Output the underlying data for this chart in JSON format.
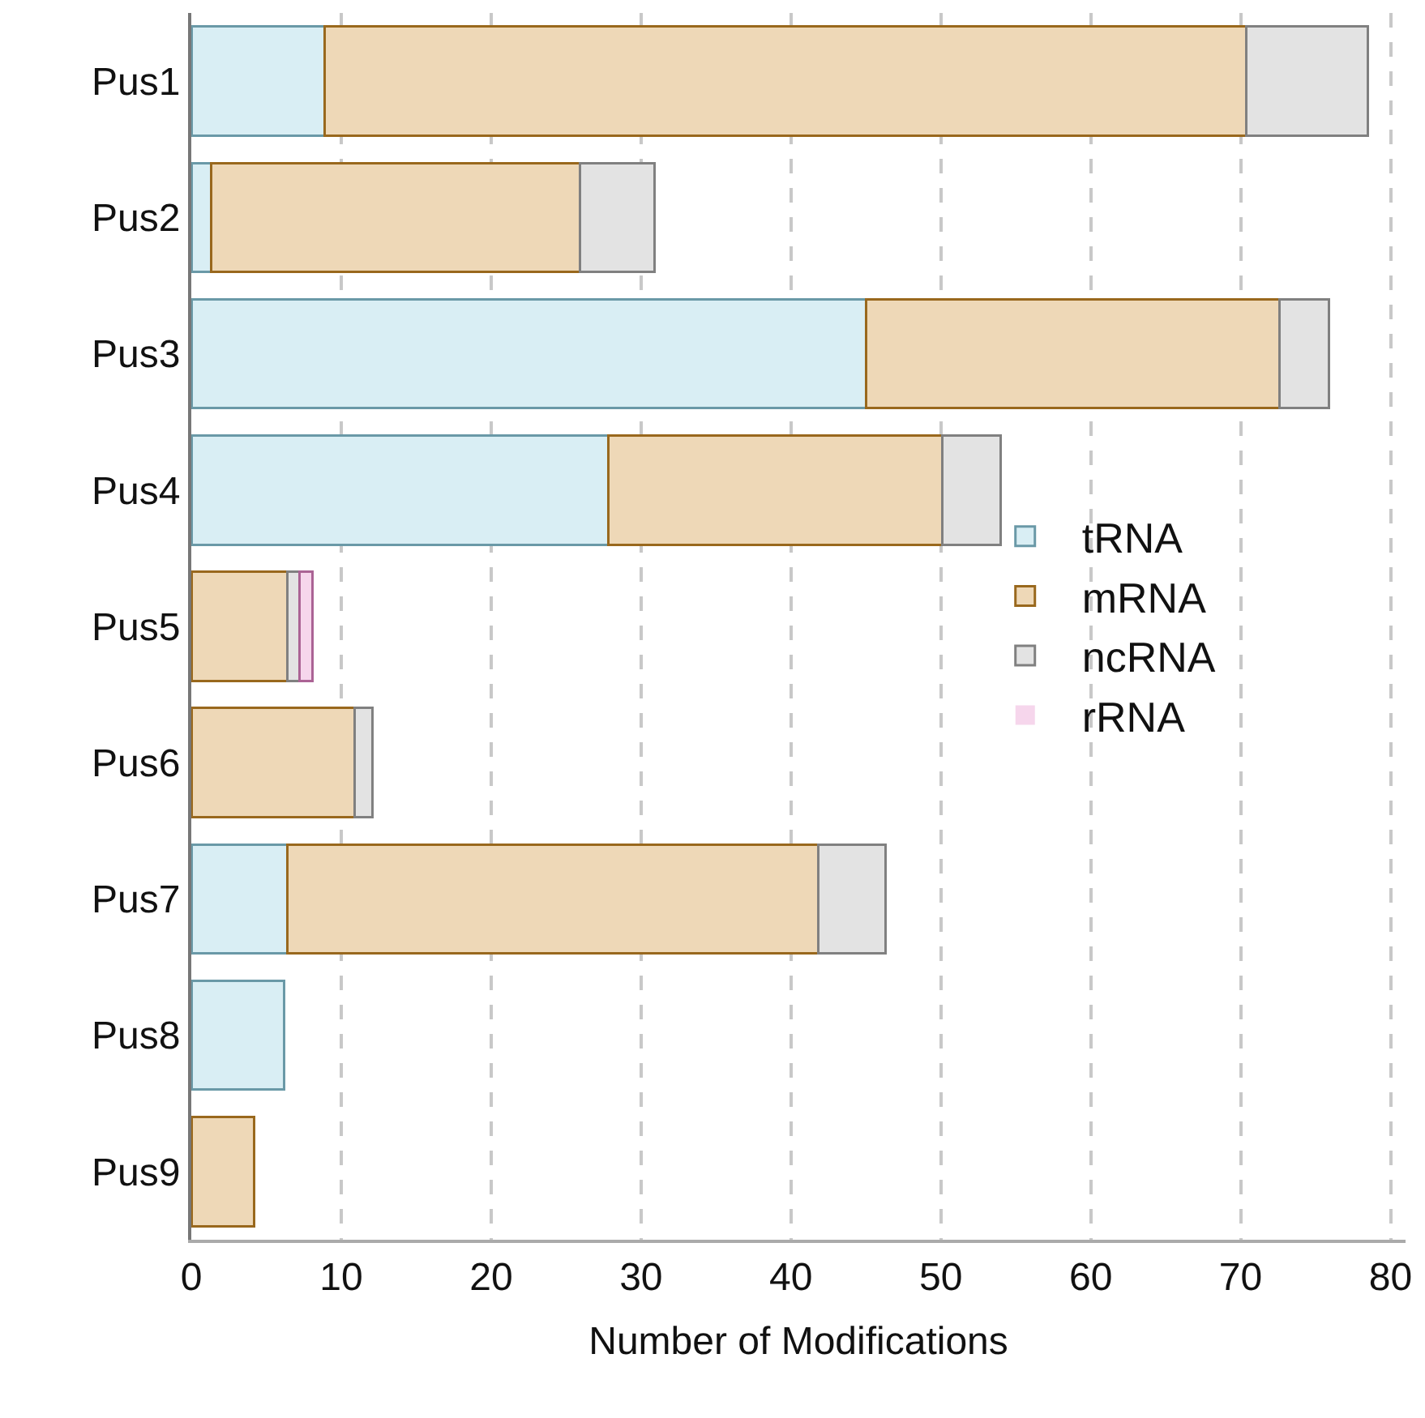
{
  "chart_data": {
    "type": "bar",
    "orientation": "horizontal",
    "stacked": true,
    "xlabel": "Number of Modifications",
    "categories": [
      "Pus1",
      "Pus2",
      "Pus3",
      "Pus4",
      "Pus5",
      "Pus6",
      "Pus7",
      "Pus8",
      "Pus9"
    ],
    "series": [
      {
        "name": "tRNA",
        "color": "#d9eef4",
        "values": [
          8.9,
          1.3,
          45,
          27.8,
          0,
          0,
          6.4,
          6.2,
          0
        ]
      },
      {
        "name": "mRNA",
        "color": "#eed8b7",
        "values": [
          61.5,
          24.6,
          27.6,
          22.3,
          6.4,
          10.9,
          35.4,
          0,
          4.2
        ]
      },
      {
        "name": "ncRNA",
        "color": "#e3e3e3",
        "values": [
          8.1,
          5,
          3.3,
          3.9,
          0.8,
          1.2,
          4.5,
          0,
          0
        ]
      },
      {
        "name": "rRNA",
        "color": "#f6d6ec",
        "values": [
          0,
          0,
          0,
          0,
          0.9,
          0,
          0,
          0,
          0
        ]
      }
    ],
    "xlim": [
      0,
      81
    ],
    "xticks": [
      0,
      10,
      20,
      30,
      40,
      50,
      60,
      70,
      80
    ],
    "grid": "x",
    "legend": "right"
  }
}
